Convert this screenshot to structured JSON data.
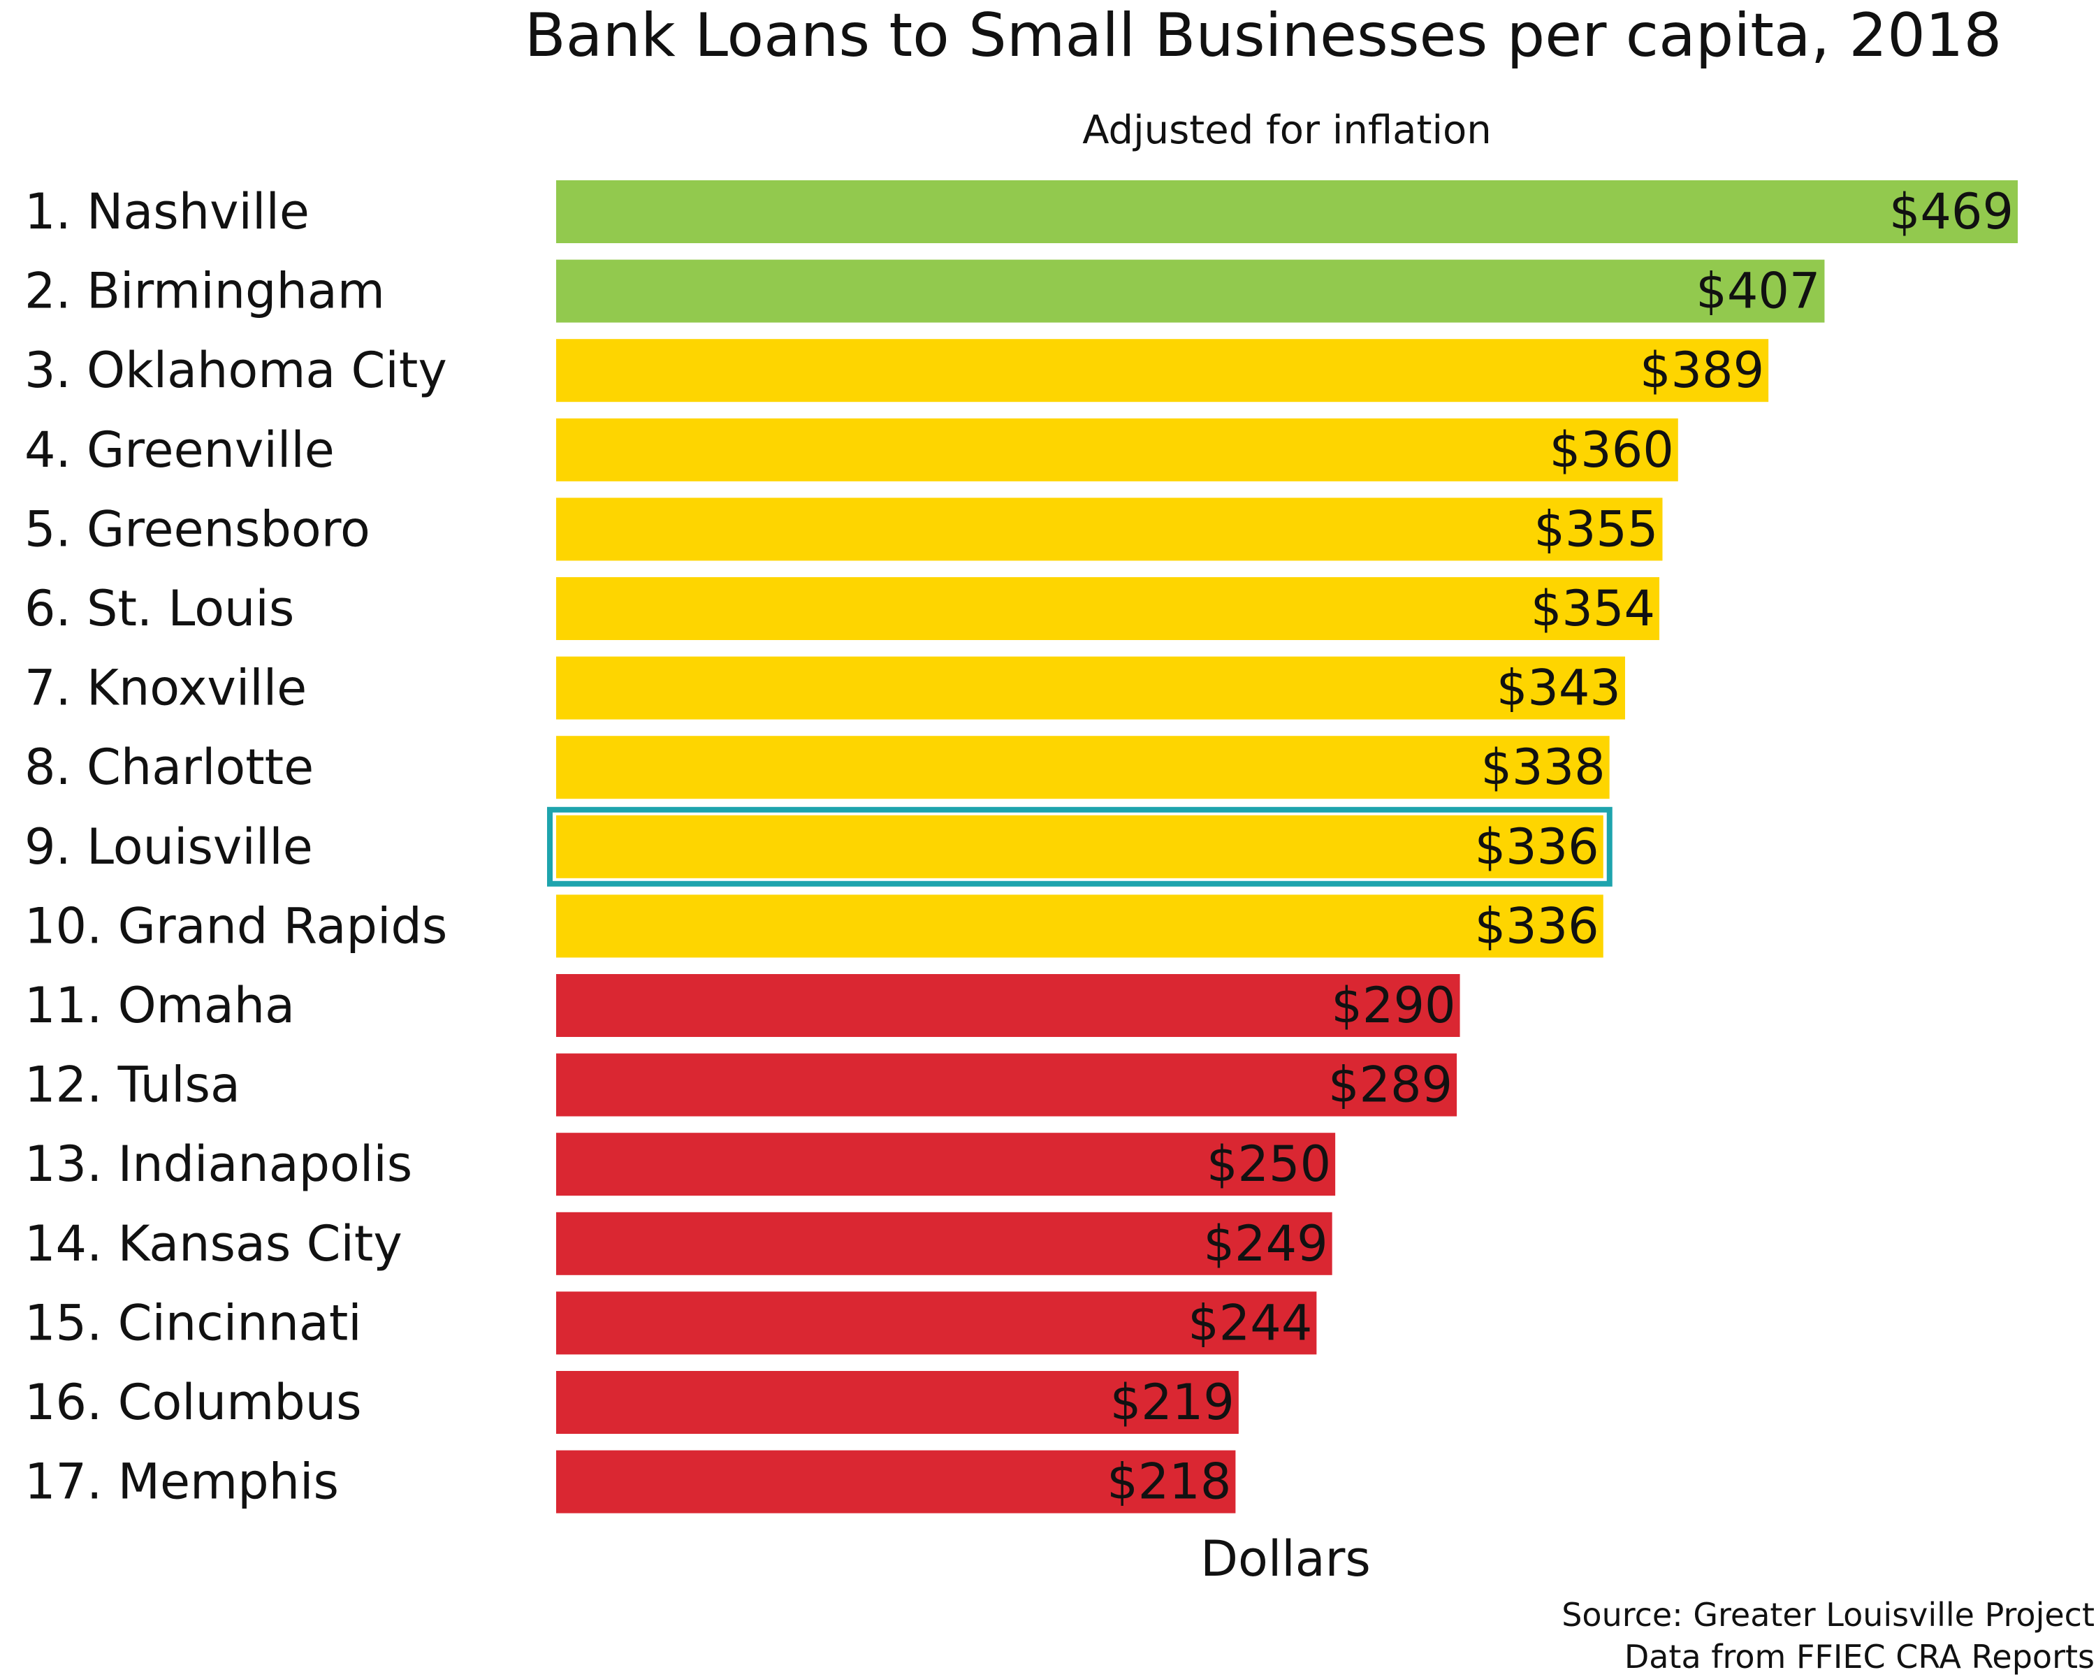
{
  "chart_data": {
    "type": "bar",
    "orientation": "horizontal",
    "title": "Bank Loans to Small Businesses per capita, 2018",
    "subtitle": "Adjusted for inflation",
    "xlabel": "Dollars",
    "ylabel": "",
    "xlim": [
      0,
      469
    ],
    "grid": false,
    "legend": "none",
    "highlight_index": 8,
    "colors": {
      "green": "#92c94e",
      "yellow": "#fed500",
      "red": "#da2732",
      "highlight": "#1ea4ad",
      "text": "#111111"
    },
    "bars": [
      {
        "label": "1. Nashville",
        "value": 469,
        "value_label": "$469",
        "color": "green"
      },
      {
        "label": "2. Birmingham",
        "value": 407,
        "value_label": "$407",
        "color": "green"
      },
      {
        "label": "3. Oklahoma City",
        "value": 389,
        "value_label": "$389",
        "color": "yellow"
      },
      {
        "label": "4. Greenville",
        "value": 360,
        "value_label": "$360",
        "color": "yellow"
      },
      {
        "label": "5. Greensboro",
        "value": 355,
        "value_label": "$355",
        "color": "yellow"
      },
      {
        "label": "6. St. Louis",
        "value": 354,
        "value_label": "$354",
        "color": "yellow"
      },
      {
        "label": "7. Knoxville",
        "value": 343,
        "value_label": "$343",
        "color": "yellow"
      },
      {
        "label": "8. Charlotte",
        "value": 338,
        "value_label": "$338",
        "color": "yellow"
      },
      {
        "label": "9. Louisville",
        "value": 336,
        "value_label": "$336",
        "color": "yellow"
      },
      {
        "label": "10. Grand Rapids",
        "value": 336,
        "value_label": "$336",
        "color": "yellow"
      },
      {
        "label": "11. Omaha",
        "value": 290,
        "value_label": "$290",
        "color": "red"
      },
      {
        "label": "12. Tulsa",
        "value": 289,
        "value_label": "$289",
        "color": "red"
      },
      {
        "label": "13. Indianapolis",
        "value": 250,
        "value_label": "$250",
        "color": "red"
      },
      {
        "label": "14. Kansas City",
        "value": 249,
        "value_label": "$249",
        "color": "red"
      },
      {
        "label": "15. Cincinnati",
        "value": 244,
        "value_label": "$244",
        "color": "red"
      },
      {
        "label": "16. Columbus",
        "value": 219,
        "value_label": "$219",
        "color": "red"
      },
      {
        "label": "17. Memphis",
        "value": 218,
        "value_label": "$218",
        "color": "red"
      }
    ]
  },
  "source": {
    "line1": "Source: Greater Louisville Project",
    "line2": "Data from FFIEC CRA Reports"
  }
}
